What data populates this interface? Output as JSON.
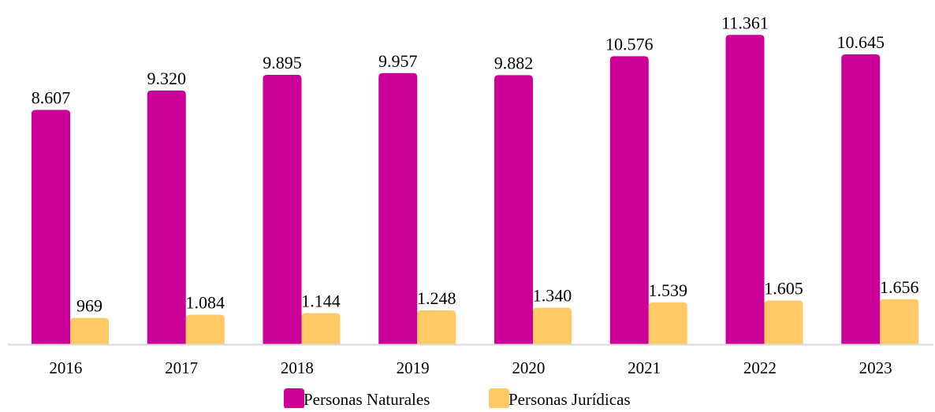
{
  "chart_data": {
    "type": "bar",
    "categories": [
      "2016",
      "2017",
      "2018",
      "2019",
      "2020",
      "2021",
      "2022",
      "2023"
    ],
    "series": [
      {
        "name": "Personas Naturales",
        "color": "#CC0099",
        "values": [
          8607,
          9320,
          9895,
          9957,
          9882,
          10576,
          11361,
          10645
        ],
        "labels": [
          "8.607",
          "9.320",
          "9.895",
          "9.957",
          "9.882",
          "10.576",
          "11.361",
          "10.645"
        ]
      },
      {
        "name": "Personas Jurídicas",
        "color": "#FFC966",
        "values": [
          969,
          1084,
          1144,
          1248,
          1340,
          1539,
          1605,
          1656
        ],
        "labels": [
          "969",
          "1.084",
          "1.144",
          "1.248",
          "1.340",
          "1.539",
          "1.605",
          "1.656"
        ]
      }
    ],
    "ylim": [
      0,
      11600
    ],
    "grid": false,
    "legend_position": "bottom",
    "axis_color": "#D9D9D9"
  }
}
